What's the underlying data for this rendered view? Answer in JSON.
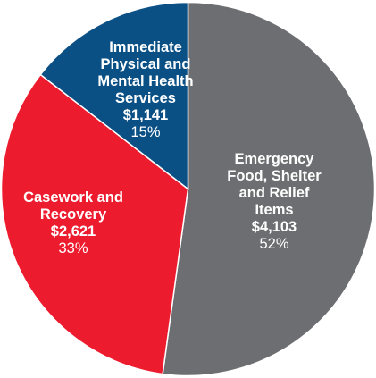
{
  "chart_data": {
    "type": "pie",
    "title": "",
    "slices": [
      {
        "label_lines": [
          "Emergency",
          "Food, Shelter",
          "and Relief",
          "Items"
        ],
        "value_label": "$4,103",
        "value": 4103,
        "percent_label": "52%",
        "color": "#6d6e71"
      },
      {
        "label_lines": [
          "Casework and",
          "Recovery"
        ],
        "value_label": "$2,621",
        "value": 2621,
        "percent_label": "33%",
        "color": "#ed1b2e"
      },
      {
        "label_lines": [
          "Immediate",
          "Physical and",
          "Mental Health",
          "Services"
        ],
        "value_label": "$1,141",
        "value": 1141,
        "percent_label": "15%",
        "color": "#0b5085"
      }
    ]
  }
}
